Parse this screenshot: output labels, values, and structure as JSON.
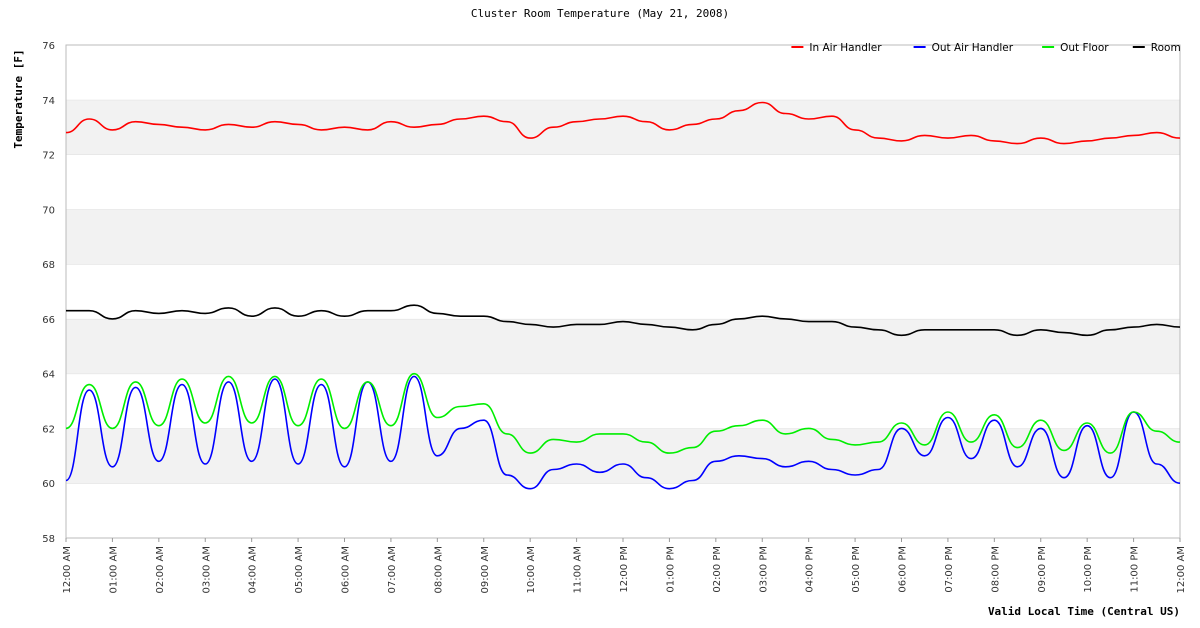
{
  "chart_data": {
    "type": "line",
    "title": "Cluster Room Temperature (May 21, 2008)",
    "xlabel": "Valid Local Time (Central US)",
    "ylabel": "Temperature [F]",
    "ylim": [
      58,
      76
    ],
    "yticks": [
      58,
      60,
      62,
      64,
      66,
      68,
      70,
      72,
      74,
      76
    ],
    "xlim_hours": [
      0,
      24
    ],
    "xtick_labels": [
      "12:00 AM",
      "01:00 AM",
      "02:00 AM",
      "03:00 AM",
      "04:00 AM",
      "05:00 AM",
      "06:00 AM",
      "07:00 AM",
      "08:00 AM",
      "09:00 AM",
      "10:00 AM",
      "11:00 AM",
      "12:00 PM",
      "01:00 PM",
      "02:00 PM",
      "03:00 PM",
      "04:00 PM",
      "05:00 PM",
      "06:00 PM",
      "07:00 PM",
      "08:00 PM",
      "09:00 PM",
      "10:00 PM",
      "11:00 PM",
      "12:00 AM"
    ],
    "grid": "horizontal bands",
    "legend_position": "top-right",
    "x": [
      0,
      0.5,
      1,
      1.5,
      2,
      2.5,
      3,
      3.5,
      4,
      4.5,
      5,
      5.5,
      6,
      6.5,
      7,
      7.5,
      8,
      8.5,
      9,
      9.5,
      10,
      10.5,
      11,
      11.5,
      12,
      12.5,
      13,
      13.5,
      14,
      14.5,
      15,
      15.5,
      16,
      16.5,
      17,
      17.5,
      18,
      18.5,
      19,
      19.5,
      20,
      20.5,
      21,
      21.5,
      22,
      22.5,
      23,
      23.5,
      24
    ],
    "series": [
      {
        "name": "In Air Handler",
        "color": "#ff0000",
        "values": [
          72.8,
          73.3,
          72.9,
          73.2,
          73.1,
          73.0,
          72.9,
          73.1,
          73.0,
          73.2,
          73.1,
          72.9,
          73.0,
          72.9,
          73.2,
          73.0,
          73.1,
          73.3,
          73.4,
          73.2,
          72.6,
          73.0,
          73.2,
          73.3,
          73.4,
          73.2,
          72.9,
          73.1,
          73.3,
          73.6,
          73.9,
          73.5,
          73.3,
          73.4,
          72.9,
          72.6,
          72.5,
          72.7,
          72.6,
          72.7,
          72.5,
          72.4,
          72.6,
          72.4,
          72.5,
          72.6,
          72.7,
          72.8,
          72.6
        ]
      },
      {
        "name": "Out Air Handler",
        "color": "#0000ff",
        "values": [
          60.1,
          63.4,
          60.6,
          63.5,
          60.8,
          63.6,
          60.7,
          63.7,
          60.8,
          63.8,
          60.7,
          63.6,
          60.6,
          63.7,
          60.8,
          63.9,
          61.0,
          62.0,
          62.3,
          60.3,
          59.8,
          60.5,
          60.7,
          60.4,
          60.7,
          60.2,
          59.8,
          60.1,
          60.8,
          61.0,
          60.9,
          60.6,
          60.8,
          60.5,
          60.3,
          60.5,
          62.0,
          61.0,
          62.4,
          60.9,
          62.3,
          60.6,
          62.0,
          60.2,
          62.1,
          60.2,
          62.6,
          60.7,
          60.0
        ]
      },
      {
        "name": "Out Floor",
        "color": "#00ee00",
        "values": [
          62.0,
          63.6,
          62.0,
          63.7,
          62.1,
          63.8,
          62.2,
          63.9,
          62.2,
          63.9,
          62.1,
          63.8,
          62.0,
          63.7,
          62.1,
          64.0,
          62.4,
          62.8,
          62.9,
          61.8,
          61.1,
          61.6,
          61.5,
          61.8,
          61.8,
          61.5,
          61.1,
          61.3,
          61.9,
          62.1,
          62.3,
          61.8,
          62.0,
          61.6,
          61.4,
          61.5,
          62.2,
          61.4,
          62.6,
          61.5,
          62.5,
          61.3,
          62.3,
          61.2,
          62.2,
          61.1,
          62.6,
          61.9,
          61.5
        ]
      },
      {
        "name": "Room",
        "color": "#000000",
        "values": [
          66.3,
          66.3,
          66.0,
          66.3,
          66.2,
          66.3,
          66.2,
          66.4,
          66.1,
          66.4,
          66.1,
          66.3,
          66.1,
          66.3,
          66.3,
          66.5,
          66.2,
          66.1,
          66.1,
          65.9,
          65.8,
          65.7,
          65.8,
          65.8,
          65.9,
          65.8,
          65.7,
          65.6,
          65.8,
          66.0,
          66.1,
          66.0,
          65.9,
          65.9,
          65.7,
          65.6,
          65.4,
          65.6,
          65.6,
          65.6,
          65.6,
          65.4,
          65.6,
          65.5,
          65.4,
          65.6,
          65.7,
          65.8,
          65.7
        ]
      }
    ]
  }
}
